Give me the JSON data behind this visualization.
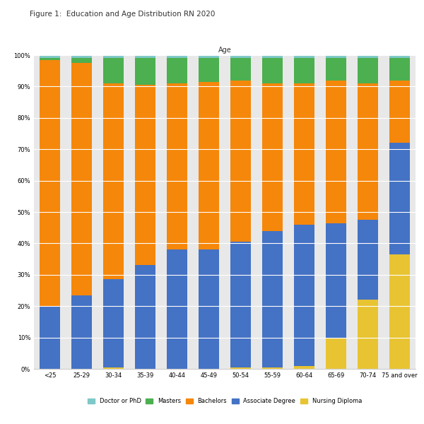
{
  "title": "Figure 1:  Education and Age Distribution RN 2020",
  "xlabel": "Age",
  "categories": [
    "<25",
    "25-29",
    "30-34",
    "35-39",
    "40-44",
    "45-49",
    "50-54",
    "55-59",
    "60-64",
    "65-69",
    "70-74",
    "75 and over"
  ],
  "series": {
    "Doctor or PhD": [
      1.0,
      1.0,
      1.0,
      1.0,
      1.0,
      1.0,
      1.0,
      1.0,
      1.0,
      1.0,
      1.0,
      1.0
    ],
    "Masters": [
      0.5,
      1.5,
      8.0,
      8.5,
      8.0,
      7.5,
      7.0,
      8.0,
      8.0,
      7.0,
      8.0,
      7.0
    ],
    "Bachelors": [
      78.5,
      74.0,
      62.5,
      57.5,
      53.0,
      53.5,
      51.5,
      47.0,
      45.0,
      45.5,
      43.5,
      20.0
    ],
    "Associate Degree": [
      20.0,
      23.5,
      28.0,
      33.0,
      38.0,
      38.0,
      40.0,
      43.5,
      45.0,
      36.5,
      25.5,
      35.5
    ],
    "Nursing Diploma": [
      0.0,
      0.0,
      0.5,
      0.0,
      0.0,
      0.0,
      0.5,
      0.5,
      1.0,
      10.0,
      22.0,
      36.5
    ]
  },
  "colors": {
    "Doctor or PhD": "#7ec8c8",
    "Masters": "#4caf50",
    "Bachelors": "#f5870a",
    "Associate Degree": "#4472c4",
    "Nursing Diploma": "#e8c432"
  },
  "legend_order": [
    "Doctor or PhD",
    "Masters",
    "Bachelors",
    "Associate Degree",
    "Nursing Diploma"
  ],
  "stack_order": [
    "Nursing Diploma",
    "Associate Degree",
    "Bachelors",
    "Masters",
    "Doctor or PhD"
  ],
  "ylim": [
    0,
    100
  ],
  "ytick_labels": [
    "0%",
    "10%",
    "20%",
    "30%",
    "40%",
    "50%",
    "60%",
    "70%",
    "80%",
    "90%",
    "100%"
  ],
  "ytick_values": [
    0,
    10,
    20,
    30,
    40,
    50,
    60,
    70,
    80,
    90,
    100
  ],
  "bar_width": 0.65,
  "figure_width": 6.0,
  "figure_height": 6.0,
  "title_fontsize": 7.5,
  "axis_label_fontsize": 7,
  "tick_fontsize": 6,
  "legend_fontsize": 6
}
